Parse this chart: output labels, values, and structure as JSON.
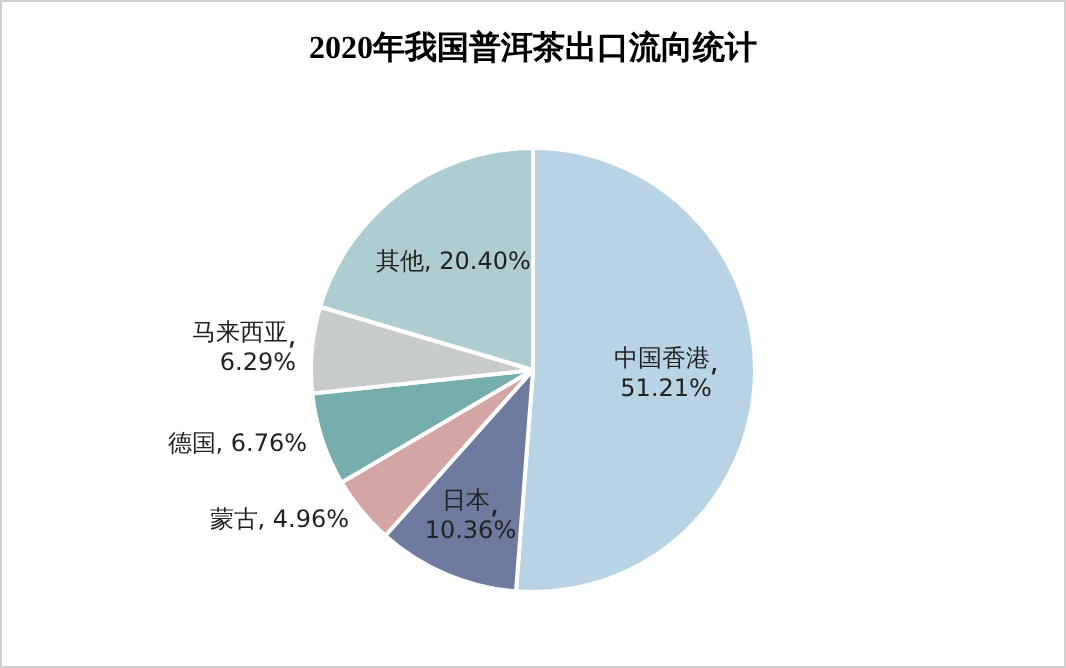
{
  "chart_data": {
    "type": "pie",
    "title": "2020年我国普洱茶出口流向统计",
    "categories": [
      "中国香港",
      "日本",
      "蒙古",
      "德国",
      "马来西亚",
      "其他"
    ],
    "values": [
      51.21,
      10.36,
      4.96,
      6.76,
      6.29,
      20.4
    ],
    "colors": [
      "#b8d4e4",
      "#6e7a9e",
      "#d4a5a5",
      "#76adad",
      "#c8cbcb",
      "#adcdd0"
    ],
    "value_labels": [
      "51.21%",
      "10.36%",
      "4.96%",
      "6.76%",
      "6.29%",
      "20.40%"
    ],
    "legend": false
  }
}
